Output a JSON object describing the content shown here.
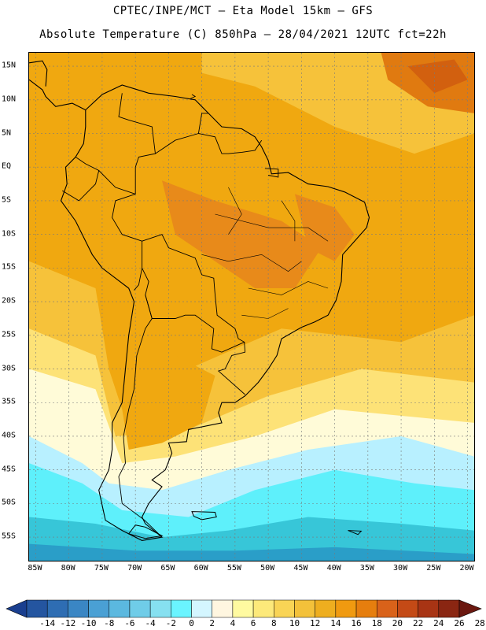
{
  "header": {
    "line1": "CPTEC/INPE/MCT –  Eta Model 15km – GFS",
    "line2": "Absolute Temperature (C) 850hPa – 28/04/2021 12UTC fct=22h"
  },
  "lat_labels": [
    "15N",
    "10N",
    "5N",
    "EQ",
    "5S",
    "10S",
    "15S",
    "20S",
    "25S",
    "30S",
    "35S",
    "40S",
    "45S",
    "50S",
    "55S"
  ],
  "lon_labels": [
    "85W",
    "80W",
    "75W",
    "70W",
    "65W",
    "60W",
    "55W",
    "50W",
    "45W",
    "40W",
    "35W",
    "30W",
    "25W",
    "20W"
  ],
  "colorbar": {
    "labels": [
      "-14",
      "-12",
      "-10",
      "-8",
      "-6",
      "-4",
      "-2",
      "0",
      "2",
      "4",
      "6",
      "8",
      "10",
      "12",
      "14",
      "16",
      "18",
      "20",
      "22",
      "24",
      "26",
      "28"
    ],
    "colors": [
      "#1a3f8f",
      "#2455a0",
      "#2e6db3",
      "#3a86c4",
      "#4aa0d4",
      "#5bb8df",
      "#6fcce8",
      "#86e0f0",
      "#6af4ff",
      "#d4f6ff",
      "#fff6e0",
      "#fffaa0",
      "#fde97a",
      "#f9d455",
      "#f3c13a",
      "#eeae1f",
      "#f09a10",
      "#e67e0e",
      "#d9621a",
      "#c44a16",
      "#a83414",
      "#8a2612",
      "#6b1810"
    ]
  },
  "map": {
    "extent": {
      "lon_min": -86,
      "lon_max": -19,
      "lat_min": -58.5,
      "lat_max": 17
    },
    "colors": {
      "hot": "#e88a1a",
      "warm": "#f0a810",
      "mild": "#f6c23a",
      "cool_yellow": "#fde277",
      "pale": "#fffbd8",
      "white": "#fffaf0",
      "cyan": "#5ef0fb",
      "lightblue": "#b8f0ff",
      "teal": "#37c6d8",
      "blue": "#2a9ec8",
      "coast": "#000000",
      "grid": "#7a7a7a"
    }
  }
}
